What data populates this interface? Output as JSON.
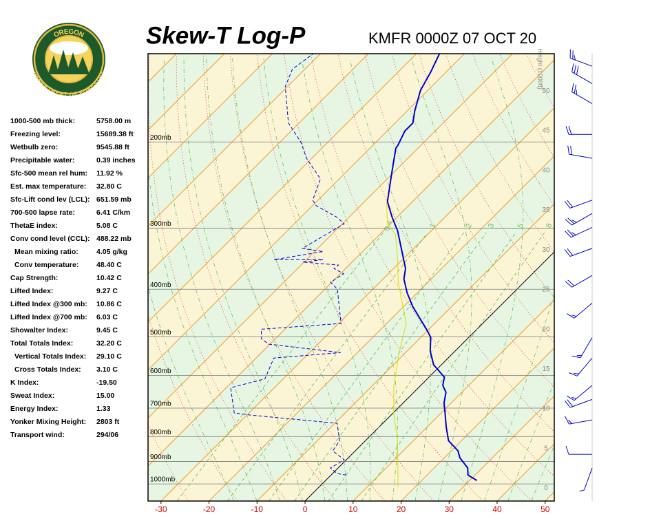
{
  "header": {
    "title": "Skew-T Log-P",
    "station": "KMFR 0000Z 07 OCT 20"
  },
  "logo": {
    "top": "OREGON",
    "bottom": "DEPARTMENT OF FORESTRY"
  },
  "indices": [
    {
      "label": "1000-500 mb thick:",
      "value": "5758.00 m"
    },
    {
      "label": "Freezing level:",
      "value": "15689.38 ft"
    },
    {
      "label": "Wetbulb zero:",
      "value": "9545.88 ft"
    },
    {
      "label": "Precipitable water:",
      "value": "0.39 inches"
    },
    {
      "label": "Sfc-500 mean rel hum:",
      "value": "11.92 %"
    },
    {
      "label": "Est. max temperature:",
      "value": "32.80 C"
    },
    {
      "label": "Sfc-Lift cond lev (LCL):",
      "value": "651.59 mb"
    },
    {
      "label": "700-500 lapse rate:",
      "value": "6.41 C/km"
    },
    {
      "label": "ThetaE index:",
      "value": "5.08 C"
    },
    {
      "label": "Conv cond level (CCL):",
      "value": "488.22 mb"
    },
    {
      "label": "Mean mixing ratio:",
      "value": "4.05 g/kg"
    },
    {
      "label": "Conv temperature:",
      "value": "48.40 C"
    },
    {
      "label": "Cap Strength:",
      "value": "10.42 C"
    },
    {
      "label": "Lifted Index:",
      "value": "9.27 C"
    },
    {
      "label": "Lifted Index @300 mb:",
      "value": "10.86 C"
    },
    {
      "label": "Lifted Index @700 mb:",
      "value": "6.03 C"
    },
    {
      "label": "Showalter Index:",
      "value": "9.45 C"
    },
    {
      "label": "Total Totals Index:",
      "value": "32.20 C"
    },
    {
      "label": "Vertical Totals Index:",
      "value": "29.10 C"
    },
    {
      "label": "Cross Totals Index:",
      "value": "3.10 C"
    },
    {
      "label": "K Index:",
      "value": "-19.50"
    },
    {
      "label": "Sweat Index:",
      "value": "15.00"
    },
    {
      "label": "Energy Index:",
      "value": "1.33"
    },
    {
      "label": "Yonker Mixing Height:",
      "value": "2803 ft"
    },
    {
      "label": "Transport wind:",
      "value": "294/06"
    }
  ],
  "chart_data": {
    "type": "skew-t",
    "xlim": [
      -32.7,
      51.9
    ],
    "xticks": [
      -30,
      -20,
      -10,
      0,
      10,
      20,
      30,
      40,
      50
    ],
    "ylim": [
      1084,
      132
    ],
    "log_y": true,
    "yticks": [
      {
        "value": 1000,
        "label": "1000mb"
      },
      {
        "value": 900,
        "label": "900mb"
      },
      {
        "value": 800,
        "label": "800mb"
      },
      {
        "value": 700,
        "label": "700mb"
      },
      {
        "value": 600,
        "label": "600mb"
      },
      {
        "value": 500,
        "label": "500mb"
      },
      {
        "value": 400,
        "label": "400mb"
      },
      {
        "value": 300,
        "label": "300mb"
      },
      {
        "value": 200,
        "label": "200mb"
      }
    ],
    "y2label": "Height (1000ft)",
    "y2lim": [
      -1.6,
      54.7
    ],
    "y2ticks": [
      0,
      5,
      10,
      15,
      20,
      25,
      30,
      35,
      40,
      45,
      50
    ],
    "mixing_ratio_lines": [
      0.4,
      1,
      2,
      3,
      5,
      8
    ],
    "series": [
      {
        "color": "#0000cc",
        "style": "solid",
        "pressure": [
          984,
          959,
          928,
          884,
          856,
          816,
          764,
          716,
          683,
          650,
          629,
          605,
          571,
          535,
          502,
          483,
          434,
          407,
          381,
          363,
          335,
          304,
          285,
          265,
          246,
          224,
          206,
          203,
          190,
          183,
          173,
          157,
          144,
          132
        ],
        "values": [
          31.5,
          28.5,
          27.0,
          23.2,
          21.4,
          17.3,
          13.9,
          10.8,
          8.5,
          6.7,
          4.6,
          3.2,
          -1.6,
          -5.2,
          -7.9,
          -10.5,
          -18.1,
          -22.1,
          -25.7,
          -27.5,
          -31.8,
          -37.0,
          -41.0,
          -45.2,
          -48.0,
          -51.5,
          -54.6,
          -54.8,
          -56.3,
          -56.3,
          -58.4,
          -61.5,
          -63.2,
          -65.2
        ]
      },
      {
        "color": "#0000cc",
        "style": "dashed",
        "pressure": [
          959,
          953,
          928,
          893,
          856,
          816,
          752,
          723,
          716,
          636,
          610,
          553,
          539,
          518,
          505,
          483,
          470,
          400,
          387,
          372,
          363,
          357,
          352,
          348,
          348,
          335,
          330,
          294,
          285,
          270,
          263,
          238,
          216,
          200,
          183,
          154,
          142,
          132
        ],
        "values": [
          3.2,
          1.0,
          -1.6,
          -0.4,
          -4.7,
          -5.4,
          -9.5,
          -29.4,
          -33.1,
          -39.1,
          -33.8,
          -36.3,
          -23.5,
          -40.3,
          -42.9,
          -44.9,
          -29.5,
          -37.4,
          -40.3,
          -39.3,
          -42.4,
          -42.2,
          -50.3,
          -46.5,
          -56.8,
          -48.2,
          -53.2,
          -49.6,
          -52.5,
          -59.2,
          -61.1,
          -63.9,
          -71.1,
          -75.7,
          -82.2,
          -90.5,
          -92.6,
          -91.5
        ]
      },
      {
        "color": "#e0d800",
        "style": "thin",
        "pressure": [
          1016,
          816,
          716,
          629,
          535,
          470,
          387,
          352,
          309,
          294,
          263
        ],
        "values": [
          16.5,
          6.7,
          0.1,
          -5.6,
          -11.6,
          -15.9,
          -26.2,
          -30.5,
          -36.7,
          -40.6,
          -45.7
        ]
      }
    ],
    "wind": {
      "pressure": [
        140,
        152,
        167,
        193,
        216,
        263,
        280,
        299,
        330,
        375,
        427,
        502,
        553,
        629,
        672,
        740,
        870,
        928
      ],
      "direction": [
        290,
        300,
        300,
        270,
        280,
        250,
        240,
        245,
        250,
        240,
        230,
        210,
        220,
        230,
        250,
        260,
        270,
        200
      ],
      "speed": [
        25,
        30,
        25,
        20,
        20,
        20,
        25,
        25,
        20,
        20,
        15,
        15,
        15,
        15,
        20,
        15,
        10,
        5
      ]
    }
  }
}
